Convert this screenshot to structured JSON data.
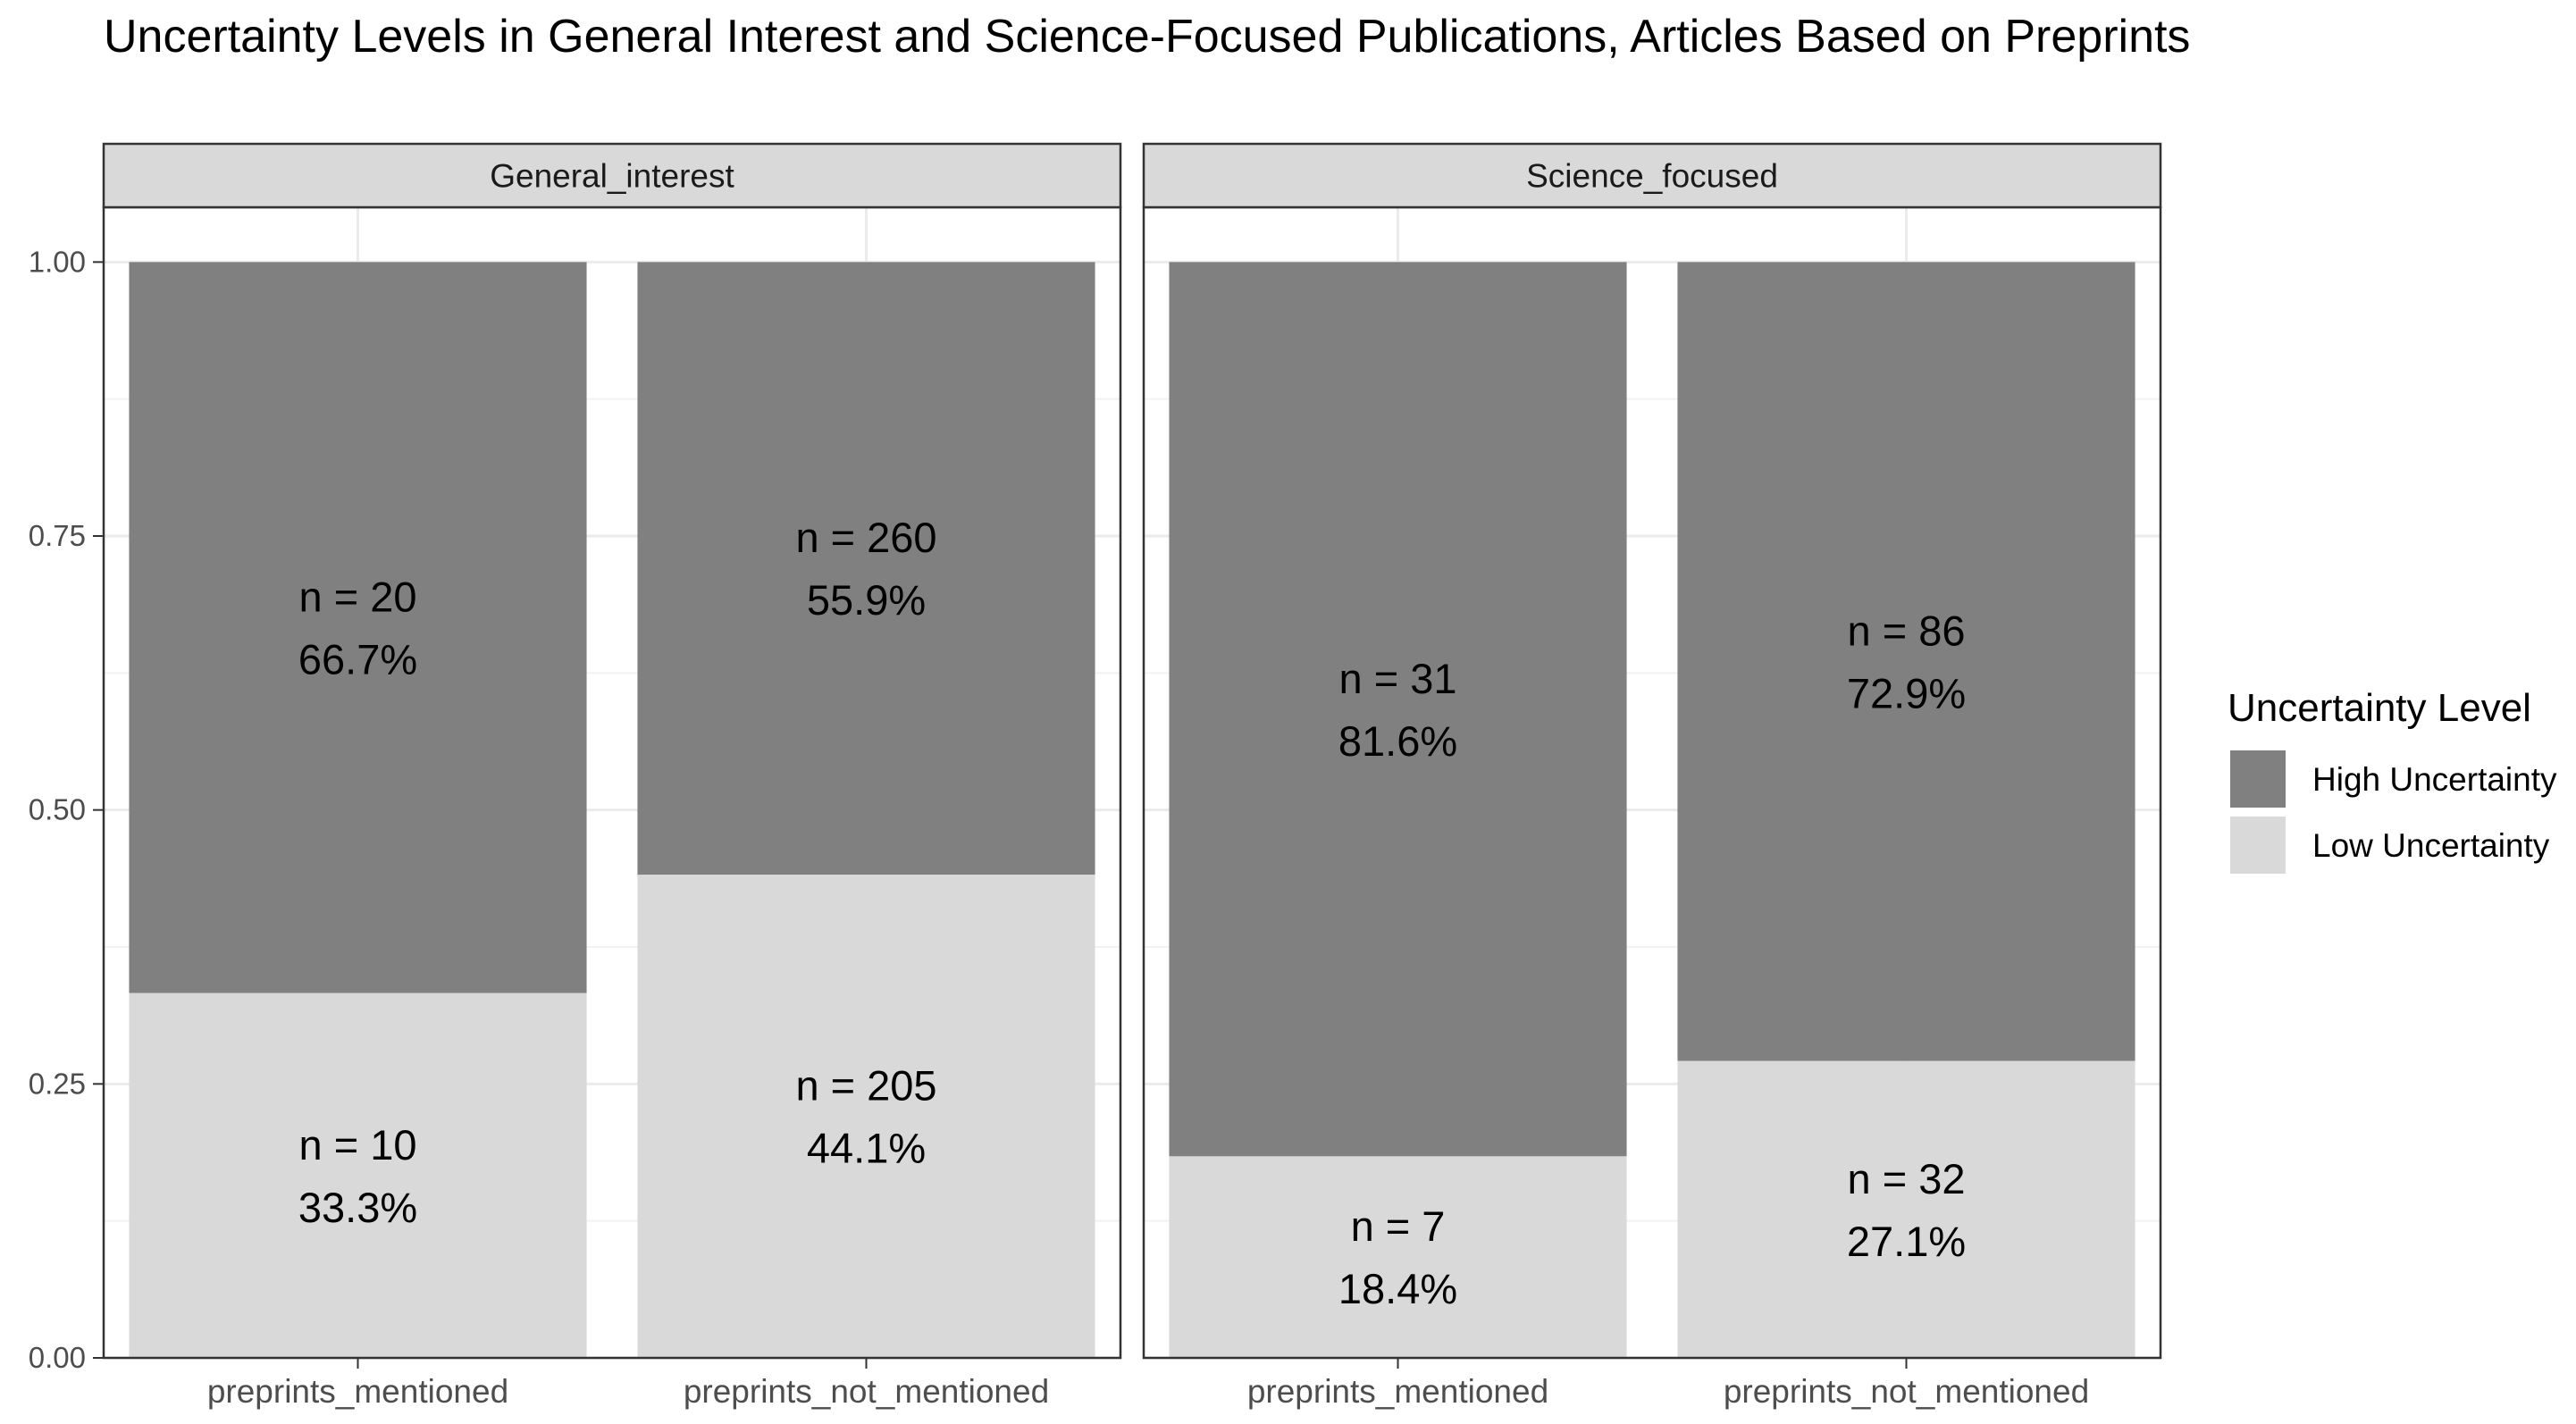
{
  "chart_data": {
    "type": "bar",
    "stacked": true,
    "title": "Uncertainty Levels in General Interest and Science-Focused Publications, Articles Based on Preprints",
    "xlabel": "",
    "ylabel": "",
    "ylim": [
      0,
      1.05
    ],
    "y_ticks": [
      "0.00",
      "0.25",
      "0.50",
      "0.75",
      "1.00"
    ],
    "grid": true,
    "categories": [
      "preprints_mentioned",
      "preprints_not_mentioned"
    ],
    "legend": {
      "title": "Uncertainty Level",
      "position": "right",
      "entries": [
        "High Uncertainty",
        "Low Uncertainty"
      ]
    },
    "colors": {
      "High Uncertainty": "#808080",
      "Low Uncertainty": "#d9d9d9"
    },
    "facets": [
      {
        "name": "General_interest",
        "bars": [
          {
            "category": "preprints_mentioned",
            "segments": [
              {
                "level": "Low Uncertainty",
                "value": 0.333,
                "n_label": "n = 10",
                "pct_label": "33.3%"
              },
              {
                "level": "High Uncertainty",
                "value": 0.667,
                "n_label": "n = 20",
                "pct_label": "66.7%"
              }
            ]
          },
          {
            "category": "preprints_not_mentioned",
            "segments": [
              {
                "level": "Low Uncertainty",
                "value": 0.441,
                "n_label": "n = 205",
                "pct_label": "44.1%"
              },
              {
                "level": "High Uncertainty",
                "value": 0.559,
                "n_label": "n = 260",
                "pct_label": "55.9%"
              }
            ]
          }
        ]
      },
      {
        "name": "Science_focused",
        "bars": [
          {
            "category": "preprints_mentioned",
            "segments": [
              {
                "level": "Low Uncertainty",
                "value": 0.184,
                "n_label": "n = 7",
                "pct_label": "18.4%"
              },
              {
                "level": "High Uncertainty",
                "value": 0.816,
                "n_label": "n = 31",
                "pct_label": "81.6%"
              }
            ]
          },
          {
            "category": "preprints_not_mentioned",
            "segments": [
              {
                "level": "Low Uncertainty",
                "value": 0.271,
                "n_label": "n = 32",
                "pct_label": "27.1%"
              },
              {
                "level": "High Uncertainty",
                "value": 0.729,
                "n_label": "n = 86",
                "pct_label": "72.9%"
              }
            ]
          }
        ]
      }
    ]
  }
}
